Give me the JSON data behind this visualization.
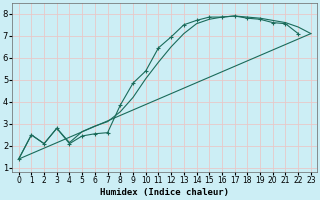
{
  "xlabel": "Humidex (Indice chaleur)",
  "bg_color": "#cceef5",
  "grid_color": "#e8c8c8",
  "line_color": "#1a6b5a",
  "xlim": [
    -0.5,
    23.5
  ],
  "ylim": [
    0.8,
    8.5
  ],
  "xticks": [
    0,
    1,
    2,
    3,
    4,
    5,
    6,
    7,
    8,
    9,
    10,
    11,
    12,
    13,
    14,
    15,
    16,
    17,
    18,
    19,
    20,
    21,
    22,
    23
  ],
  "yticks": [
    1,
    2,
    3,
    4,
    5,
    6,
    7,
    8
  ],
  "series1_x": [
    0,
    1,
    2,
    3,
    4,
    5,
    6,
    7,
    8,
    9,
    10,
    11,
    12,
    13,
    14,
    15,
    16,
    17,
    18,
    19,
    20,
    21,
    22
  ],
  "series1_y": [
    1.4,
    2.5,
    2.1,
    2.8,
    2.1,
    2.45,
    2.55,
    2.6,
    3.85,
    4.85,
    5.4,
    6.45,
    6.95,
    7.5,
    7.7,
    7.85,
    7.85,
    7.9,
    7.8,
    7.75,
    7.6,
    7.55,
    7.1
  ],
  "series2_x": [
    0,
    1,
    2,
    3,
    4,
    5,
    6,
    7,
    8,
    9,
    10,
    11,
    12,
    13,
    14,
    15,
    16,
    17,
    18,
    19,
    20,
    21,
    22,
    23
  ],
  "series2_y": [
    1.4,
    2.5,
    2.1,
    2.8,
    2.15,
    2.65,
    2.9,
    3.1,
    3.55,
    4.2,
    5.05,
    5.8,
    6.5,
    7.1,
    7.55,
    7.75,
    7.85,
    7.9,
    7.85,
    7.8,
    7.7,
    7.6,
    7.4,
    7.1
  ],
  "series3_x": [
    0,
    23
  ],
  "series3_y": [
    1.4,
    7.1
  ]
}
